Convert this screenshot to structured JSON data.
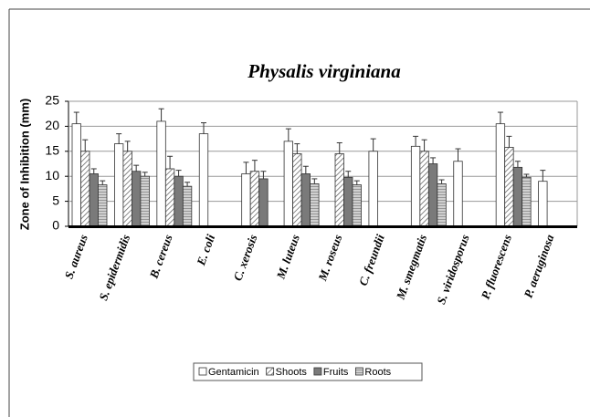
{
  "chart_data": {
    "type": "bar",
    "title": "Physalis virginiana",
    "y_label": "Zone of Inhibition (mm)",
    "categories": [
      "S. aureus",
      "S. epidermidis",
      "B. cereus",
      "E. coli",
      "C. xerosis",
      "M. luteus",
      "M. roseus",
      "C. freundii",
      "M. smegmatis",
      "S. viridosporus",
      "P. fluorescens",
      "P. aeruginosa"
    ],
    "series": [
      {
        "name": "Gentamicin",
        "color": "#ffffff",
        "hatch": "none",
        "values": [
          20.5,
          16.5,
          21,
          18.5,
          10.5,
          17,
          null,
          15,
          16,
          13,
          20.5,
          9
        ],
        "errors": [
          2.3,
          2,
          2.5,
          2.2,
          2.3,
          2.5,
          null,
          2.5,
          2,
          2.5,
          2.3,
          2.2
        ]
      },
      {
        "name": "Shoots",
        "color": "#ffffff",
        "hatch": "diagonal",
        "values": [
          15,
          15,
          11.5,
          null,
          11,
          14.5,
          14.5,
          null,
          15,
          null,
          15.8,
          null
        ],
        "errors": [
          2.3,
          2,
          2.5,
          null,
          2.2,
          2,
          2.2,
          null,
          2.3,
          null,
          2.2,
          null
        ]
      },
      {
        "name": "Fruits",
        "color": "#7a7a7a",
        "hatch": "none",
        "values": [
          10.5,
          11,
          10,
          null,
          9.5,
          10.5,
          9.8,
          null,
          12.5,
          null,
          11.8,
          null
        ],
        "errors": [
          1,
          1.2,
          1.2,
          null,
          1.5,
          1.5,
          1.2,
          null,
          1.2,
          null,
          1.2,
          null
        ]
      },
      {
        "name": "Roots",
        "color": "#d0d0d0",
        "hatch": "horizontal",
        "values": [
          8.3,
          10,
          8,
          null,
          null,
          8.5,
          8.3,
          null,
          8.5,
          null,
          9.8,
          null
        ],
        "errors": [
          0.8,
          0.8,
          0.8,
          null,
          null,
          1,
          0.8,
          null,
          0.8,
          null,
          0.6,
          null
        ]
      }
    ],
    "ylim": [
      0,
      25
    ],
    "yticks": [
      0,
      5,
      10,
      15,
      20,
      25
    ],
    "grid": true,
    "legend": "bottom"
  }
}
